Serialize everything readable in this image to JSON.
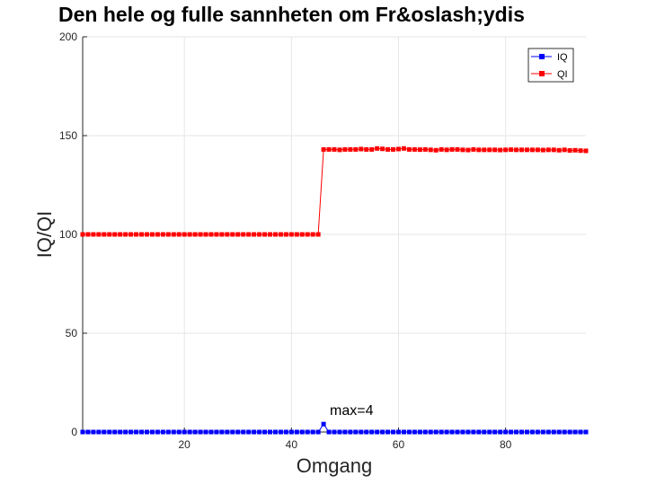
{
  "chart_data": {
    "type": "line",
    "title": "Den hele og fulle sannheten om Fr&oslash;ydis",
    "xlabel": "Omgang",
    "ylabel": "IQ/QI",
    "xlim": [
      1,
      95
    ],
    "ylim": [
      0,
      200
    ],
    "xticks": [
      20,
      40,
      60,
      80
    ],
    "yticks": [
      0,
      50,
      100,
      150,
      200
    ],
    "grid": true,
    "legend_position": "top-right",
    "annotation": {
      "text": "max=4",
      "x": 46,
      "y": 4
    },
    "series": [
      {
        "name": "IQ",
        "color": "#0000ff",
        "marker": "square",
        "x": [
          1,
          2,
          3,
          4,
          5,
          6,
          7,
          8,
          9,
          10,
          11,
          12,
          13,
          14,
          15,
          16,
          17,
          18,
          19,
          20,
          21,
          22,
          23,
          24,
          25,
          26,
          27,
          28,
          29,
          30,
          31,
          32,
          33,
          34,
          35,
          36,
          37,
          38,
          39,
          40,
          41,
          42,
          43,
          44,
          45,
          46,
          47,
          48,
          49,
          50,
          51,
          52,
          53,
          54,
          55,
          56,
          57,
          58,
          59,
          60,
          61,
          62,
          63,
          64,
          65,
          66,
          67,
          68,
          69,
          70,
          71,
          72,
          73,
          74,
          75,
          76,
          77,
          78,
          79,
          80,
          81,
          82,
          83,
          84,
          85,
          86,
          87,
          88,
          89,
          90,
          91,
          92,
          93,
          94,
          95
        ],
        "y": [
          0,
          0,
          0,
          0,
          0,
          0,
          0,
          0,
          0,
          0,
          0,
          0,
          0,
          0,
          0,
          0,
          0,
          0,
          0,
          0,
          0,
          0,
          0,
          0,
          0,
          0,
          0,
          0,
          0,
          0,
          0,
          0,
          0,
          0,
          0,
          0,
          0,
          0,
          0,
          0,
          0,
          0,
          0,
          0,
          0,
          4,
          0,
          0,
          0,
          0,
          0,
          0,
          0,
          0,
          0,
          0,
          0,
          0,
          0,
          0,
          0,
          0,
          0,
          0,
          0,
          0,
          0,
          0,
          0,
          0,
          0,
          0,
          0,
          0,
          0,
          0,
          0,
          0,
          0,
          0,
          0,
          0,
          0,
          0,
          0,
          0,
          0,
          0,
          0,
          0,
          0,
          0,
          0,
          0,
          0
        ]
      },
      {
        "name": "QI",
        "color": "#ff0000",
        "marker": "square",
        "x": [
          1,
          2,
          3,
          4,
          5,
          6,
          7,
          8,
          9,
          10,
          11,
          12,
          13,
          14,
          15,
          16,
          17,
          18,
          19,
          20,
          21,
          22,
          23,
          24,
          25,
          26,
          27,
          28,
          29,
          30,
          31,
          32,
          33,
          34,
          35,
          36,
          37,
          38,
          39,
          40,
          41,
          42,
          43,
          44,
          45,
          46,
          47,
          48,
          49,
          50,
          51,
          52,
          53,
          54,
          55,
          56,
          57,
          58,
          59,
          60,
          61,
          62,
          63,
          64,
          65,
          66,
          67,
          68,
          69,
          70,
          71,
          72,
          73,
          74,
          75,
          76,
          77,
          78,
          79,
          80,
          81,
          82,
          83,
          84,
          85,
          86,
          87,
          88,
          89,
          90,
          91,
          92,
          93,
          94,
          95
        ],
        "y": [
          100,
          100,
          100,
          100,
          100,
          100,
          100,
          100,
          100,
          100,
          100,
          100,
          100,
          100,
          100,
          100,
          100,
          100,
          100,
          100,
          100,
          100,
          100,
          100,
          100,
          100,
          100,
          100,
          100,
          100,
          100,
          100,
          100,
          100,
          100,
          100,
          100,
          100,
          100,
          100,
          100,
          100,
          100,
          100,
          100,
          143,
          143,
          143,
          142.8,
          143,
          143,
          143,
          143.2,
          143,
          143,
          143.5,
          143.3,
          143,
          143,
          143.2,
          143.5,
          143,
          143,
          142.9,
          143,
          142.8,
          142.6,
          143,
          142.8,
          143,
          143,
          142.8,
          142.7,
          143,
          142.8,
          142.8,
          142.8,
          142.8,
          142.7,
          142.8,
          142.9,
          142.8,
          142.8,
          142.8,
          142.8,
          142.8,
          142.7,
          142.8,
          142.8,
          142.6,
          142.8,
          142.5,
          142.6,
          142.4,
          142.3
        ]
      }
    ]
  }
}
